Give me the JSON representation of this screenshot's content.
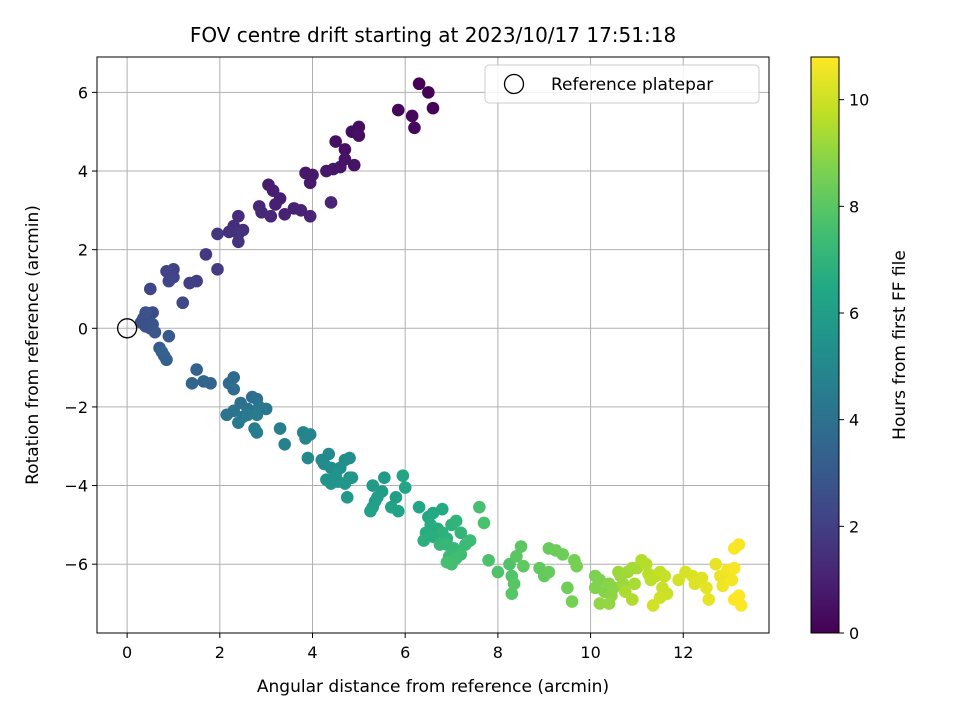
{
  "chart_data": {
    "type": "scatter",
    "title": "FOV centre drift starting at 2023/10/17 17:51:18",
    "xlabel": "Angular distance from reference (arcmin)",
    "ylabel": "Rotation from reference (arcmin)",
    "colorbar_label": "Hours from first FF file",
    "xlim": [
      -0.65,
      13.85
    ],
    "ylim": [
      -7.75,
      6.9
    ],
    "x_ticks": [
      0,
      2,
      4,
      6,
      8,
      10,
      12
    ],
    "y_ticks": [
      -6,
      -4,
      -2,
      0,
      2,
      4,
      6
    ],
    "colorbar_range": [
      0,
      10.8
    ],
    "colorbar_ticks": [
      0,
      2,
      4,
      6,
      8,
      10
    ],
    "colormap": "viridis",
    "grid": true,
    "legend": {
      "placement": "top-right",
      "entries": [
        {
          "label": "Reference platepar",
          "marker": "hollow-circle",
          "x": 0,
          "y": 0
        }
      ]
    },
    "series": [
      {
        "points": [
          [
            6.3,
            6.22,
            0.05
          ],
          [
            6.5,
            6.0,
            0.08
          ],
          [
            6.6,
            5.6,
            0.12
          ],
          [
            5.85,
            5.55,
            0.15
          ],
          [
            6.15,
            5.4,
            0.18
          ],
          [
            6.2,
            5.1,
            0.22
          ],
          [
            5.0,
            5.12,
            0.35
          ],
          [
            4.85,
            5.0,
            0.38
          ],
          [
            5.0,
            4.9,
            0.42
          ],
          [
            4.5,
            4.75,
            0.45
          ],
          [
            4.7,
            4.55,
            0.5
          ],
          [
            4.7,
            4.3,
            0.55
          ],
          [
            4.9,
            4.15,
            0.58
          ],
          [
            4.6,
            4.1,
            0.62
          ],
          [
            4.45,
            4.05,
            0.66
          ],
          [
            4.3,
            4.0,
            0.68
          ],
          [
            3.85,
            3.95,
            0.72
          ],
          [
            4.0,
            3.9,
            0.75
          ],
          [
            3.95,
            3.7,
            0.78
          ],
          [
            3.05,
            3.65,
            0.85
          ],
          [
            3.15,
            3.5,
            0.88
          ],
          [
            3.3,
            3.3,
            0.92
          ],
          [
            3.2,
            3.15,
            0.95
          ],
          [
            3.6,
            3.05,
            0.98
          ],
          [
            3.4,
            2.9,
            1.02
          ],
          [
            3.75,
            3.0,
            1.05
          ],
          [
            3.95,
            2.85,
            1.08
          ],
          [
            4.4,
            3.2,
            1.1
          ],
          [
            2.85,
            3.1,
            1.18
          ],
          [
            2.9,
            2.95,
            1.22
          ],
          [
            3.1,
            2.85,
            1.25
          ],
          [
            2.4,
            2.85,
            1.35
          ],
          [
            2.3,
            2.6,
            1.4
          ],
          [
            2.5,
            2.5,
            1.45
          ],
          [
            2.2,
            2.45,
            1.5
          ],
          [
            2.4,
            2.4,
            1.55
          ],
          [
            2.4,
            2.2,
            1.6
          ],
          [
            1.95,
            2.4,
            1.7
          ],
          [
            1.7,
            1.88,
            1.8
          ],
          [
            1.95,
            1.5,
            1.9
          ],
          [
            1.5,
            1.2,
            1.95
          ],
          [
            1.35,
            1.15,
            2.0
          ],
          [
            1.0,
            1.5,
            2.1
          ],
          [
            0.85,
            1.45,
            2.15
          ],
          [
            1.0,
            1.3,
            2.2
          ],
          [
            0.9,
            1.2,
            2.25
          ],
          [
            0.5,
            1.0,
            2.3
          ],
          [
            1.2,
            0.65,
            2.35
          ],
          [
            0.55,
            0.4,
            2.45
          ],
          [
            0.45,
            0.3,
            2.5
          ],
          [
            0.35,
            0.25,
            2.55
          ],
          [
            0.3,
            0.15,
            2.6
          ],
          [
            0.4,
            0.05,
            2.65
          ],
          [
            0.5,
            0.0,
            2.7
          ],
          [
            0.4,
            0.4,
            2.72
          ],
          [
            0.55,
            0.1,
            2.75
          ],
          [
            0.6,
            -0.1,
            2.9
          ],
          [
            0.9,
            -0.2,
            3.0
          ],
          [
            0.7,
            -0.5,
            3.1
          ],
          [
            0.8,
            -0.7,
            3.2
          ],
          [
            0.85,
            -0.8,
            3.3
          ],
          [
            0.75,
            -0.6,
            3.35
          ],
          [
            1.5,
            -1.05,
            3.4
          ],
          [
            1.65,
            -1.35,
            3.5
          ],
          [
            1.8,
            -1.4,
            3.55
          ],
          [
            1.4,
            -1.4,
            3.6
          ],
          [
            2.3,
            -1.25,
            3.7
          ],
          [
            2.2,
            -1.4,
            3.75
          ],
          [
            2.3,
            -1.55,
            3.8
          ],
          [
            2.7,
            -1.75,
            3.9
          ],
          [
            2.8,
            -1.8,
            3.95
          ],
          [
            2.45,
            -1.9,
            4.0
          ],
          [
            2.6,
            -2.05,
            4.05
          ],
          [
            2.3,
            -2.1,
            4.1
          ],
          [
            2.15,
            -2.2,
            4.15
          ],
          [
            2.5,
            -2.25,
            4.2
          ],
          [
            2.85,
            -2.0,
            4.25
          ],
          [
            3.0,
            -2.05,
            4.3
          ],
          [
            2.6,
            -2.2,
            4.35
          ],
          [
            2.4,
            -2.4,
            4.4
          ],
          [
            2.8,
            -2.2,
            4.45
          ],
          [
            2.75,
            -2.55,
            4.5
          ],
          [
            2.8,
            -2.65,
            4.55
          ],
          [
            3.3,
            -2.55,
            4.6
          ],
          [
            3.4,
            -2.95,
            4.7
          ],
          [
            3.8,
            -2.65,
            4.8
          ],
          [
            3.85,
            -2.8,
            4.85
          ],
          [
            3.95,
            -2.7,
            4.9
          ],
          [
            3.9,
            -3.3,
            5.0
          ],
          [
            4.2,
            -3.35,
            5.05
          ],
          [
            4.35,
            -3.2,
            5.1
          ],
          [
            4.25,
            -3.45,
            5.15
          ],
          [
            4.4,
            -3.55,
            5.2
          ],
          [
            4.7,
            -3.35,
            5.25
          ],
          [
            4.8,
            -3.3,
            5.3
          ],
          [
            4.6,
            -3.55,
            5.35
          ],
          [
            4.8,
            -3.8,
            5.4
          ],
          [
            4.5,
            -3.75,
            5.45
          ],
          [
            4.3,
            -3.85,
            5.5
          ],
          [
            4.4,
            -3.95,
            5.55
          ],
          [
            4.55,
            -3.9,
            5.6
          ],
          [
            4.7,
            -3.95,
            5.65
          ],
          [
            4.85,
            -3.8,
            5.7
          ],
          [
            4.75,
            -4.3,
            5.75
          ],
          [
            5.3,
            -4.0,
            5.8
          ],
          [
            5.55,
            -3.8,
            5.85
          ],
          [
            5.5,
            -4.15,
            5.9
          ],
          [
            5.8,
            -4.3,
            5.95
          ],
          [
            5.4,
            -4.3,
            6.0
          ],
          [
            5.35,
            -4.4,
            6.05
          ],
          [
            5.3,
            -4.55,
            6.1
          ],
          [
            5.25,
            -4.65,
            6.15
          ],
          [
            5.7,
            -4.55,
            6.2
          ],
          [
            5.85,
            -4.65,
            6.25
          ],
          [
            5.95,
            -3.75,
            6.3
          ],
          [
            6.0,
            -4.05,
            6.35
          ],
          [
            6.3,
            -4.55,
            6.4
          ],
          [
            6.5,
            -4.8,
            6.45
          ],
          [
            6.6,
            -4.7,
            6.5
          ],
          [
            6.8,
            -4.6,
            6.55
          ],
          [
            6.55,
            -5.0,
            6.6
          ],
          [
            6.7,
            -5.1,
            6.65
          ],
          [
            6.45,
            -5.2,
            6.7
          ],
          [
            6.6,
            -5.3,
            6.75
          ],
          [
            6.4,
            -5.4,
            6.8
          ],
          [
            6.8,
            -5.2,
            6.85
          ],
          [
            6.9,
            -5.35,
            6.9
          ],
          [
            7.0,
            -5.0,
            6.95
          ],
          [
            7.1,
            -4.9,
            7.0
          ],
          [
            7.2,
            -5.2,
            7.05
          ],
          [
            6.75,
            -5.5,
            7.1
          ],
          [
            6.9,
            -5.5,
            7.15
          ],
          [
            7.05,
            -5.6,
            7.2
          ],
          [
            6.95,
            -5.8,
            7.25
          ],
          [
            7.3,
            -5.5,
            7.3
          ],
          [
            7.4,
            -5.4,
            7.35
          ],
          [
            7.2,
            -5.75,
            7.4
          ],
          [
            7.1,
            -5.85,
            7.45
          ],
          [
            7.0,
            -6.0,
            7.5
          ],
          [
            6.9,
            -5.95,
            7.55
          ],
          [
            7.6,
            -4.55,
            7.6
          ],
          [
            7.7,
            -4.95,
            7.65
          ],
          [
            7.8,
            -5.9,
            7.7
          ],
          [
            8.0,
            -6.2,
            7.75
          ],
          [
            8.25,
            -6.0,
            7.8
          ],
          [
            8.3,
            -6.3,
            7.85
          ],
          [
            8.35,
            -6.5,
            7.9
          ],
          [
            8.3,
            -6.75,
            7.95
          ],
          [
            8.4,
            -5.8,
            8.0
          ],
          [
            8.5,
            -5.55,
            8.05
          ],
          [
            8.55,
            -6.05,
            8.1
          ],
          [
            8.9,
            -6.1,
            8.15
          ],
          [
            9.0,
            -6.3,
            8.2
          ],
          [
            9.1,
            -6.2,
            8.25
          ],
          [
            9.1,
            -5.6,
            8.3
          ],
          [
            9.25,
            -5.65,
            8.35
          ],
          [
            9.4,
            -5.75,
            8.4
          ],
          [
            9.5,
            -6.6,
            8.45
          ],
          [
            9.65,
            -5.9,
            8.5
          ],
          [
            9.6,
            -6.95,
            8.55
          ],
          [
            9.7,
            -6.05,
            8.6
          ],
          [
            10.1,
            -6.3,
            8.65
          ],
          [
            10.2,
            -6.4,
            8.7
          ],
          [
            10.1,
            -6.6,
            8.75
          ],
          [
            10.3,
            -6.7,
            8.8
          ],
          [
            10.4,
            -6.5,
            8.85
          ],
          [
            10.5,
            -6.6,
            8.9
          ],
          [
            10.45,
            -6.8,
            8.95
          ],
          [
            10.2,
            -7.0,
            9.0
          ],
          [
            10.4,
            -7.0,
            9.05
          ],
          [
            10.65,
            -6.3,
            9.1
          ],
          [
            10.7,
            -6.5,
            9.15
          ],
          [
            10.6,
            -6.2,
            9.2
          ],
          [
            10.8,
            -6.2,
            9.25
          ],
          [
            10.9,
            -6.1,
            9.3
          ],
          [
            11.0,
            -6.1,
            9.35
          ],
          [
            10.95,
            -6.5,
            9.4
          ],
          [
            10.75,
            -6.7,
            9.45
          ],
          [
            10.9,
            -6.9,
            9.5
          ],
          [
            11.1,
            -5.9,
            9.55
          ],
          [
            11.2,
            -6.0,
            9.6
          ],
          [
            11.25,
            -6.25,
            9.65
          ],
          [
            11.3,
            -6.4,
            9.7
          ],
          [
            11.4,
            -6.3,
            9.75
          ],
          [
            11.5,
            -6.2,
            9.8
          ],
          [
            11.6,
            -6.3,
            9.85
          ],
          [
            11.55,
            -6.6,
            9.9
          ],
          [
            11.65,
            -6.75,
            9.95
          ],
          [
            11.5,
            -6.85,
            10.0
          ],
          [
            11.35,
            -7.05,
            10.05
          ],
          [
            11.9,
            -6.4,
            10.1
          ],
          [
            12.05,
            -6.2,
            10.15
          ],
          [
            12.2,
            -6.3,
            10.2
          ],
          [
            12.25,
            -6.5,
            10.25
          ],
          [
            12.4,
            -6.35,
            10.3
          ],
          [
            12.5,
            -6.6,
            10.35
          ],
          [
            12.55,
            -6.9,
            10.4
          ],
          [
            12.7,
            -6.0,
            10.45
          ],
          [
            12.8,
            -6.3,
            10.5
          ],
          [
            12.85,
            -6.55,
            10.55
          ],
          [
            12.95,
            -6.15,
            10.6
          ],
          [
            13.05,
            -6.4,
            10.65
          ],
          [
            13.1,
            -6.1,
            10.68
          ],
          [
            13.2,
            -5.5,
            10.72
          ],
          [
            13.1,
            -5.6,
            10.74
          ],
          [
            13.2,
            -6.8,
            10.76
          ],
          [
            13.25,
            -7.05,
            10.78
          ],
          [
            13.1,
            -6.9,
            10.8
          ]
        ]
      }
    ]
  }
}
